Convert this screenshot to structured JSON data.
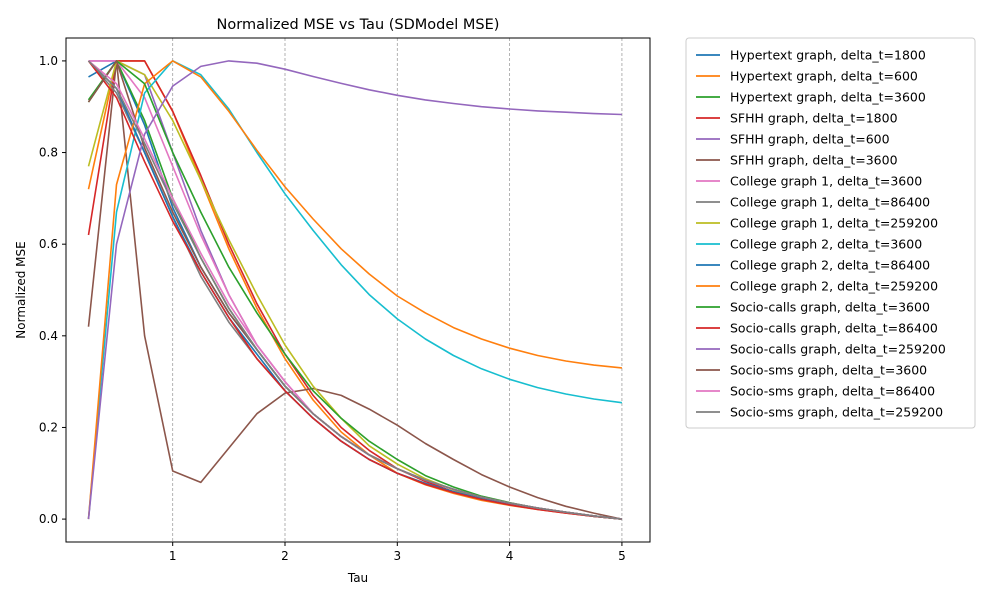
{
  "chart_data": {
    "type": "line",
    "title": "Normalized MSE vs Tau (SDModel MSE)",
    "xlabel": "Tau",
    "ylabel": "Normalized MSE",
    "xlim": [
      0.05,
      5.25
    ],
    "ylim": [
      -0.05,
      1.05
    ],
    "xticks": [
      1,
      2,
      3,
      4,
      5
    ],
    "yticks": [
      0.0,
      0.2,
      0.4,
      0.6,
      0.8,
      1.0
    ],
    "ytick_labels": [
      "0.0",
      "0.2",
      "0.4",
      "0.6",
      "0.8",
      "1.0"
    ],
    "grid": "vertical dashed",
    "legend_position": "outside right",
    "x": [
      0.25,
      0.5,
      0.75,
      1.0,
      1.25,
      1.5,
      1.75,
      2.0,
      2.25,
      2.5,
      2.75,
      3.0,
      3.25,
      3.5,
      3.75,
      4.0,
      4.25,
      4.5,
      4.75,
      5.0
    ],
    "series": [
      {
        "name": "Hypertext graph, delta_t=1800",
        "color": "#1f77b4",
        "values": [
          0.965,
          1.0,
          0.86,
          0.68,
          0.55,
          0.45,
          0.37,
          0.29,
          0.23,
          0.18,
          0.14,
          0.11,
          0.085,
          0.065,
          0.048,
          0.035,
          0.024,
          0.015,
          0.007,
          0.0
        ]
      },
      {
        "name": "Hypertext graph, delta_t=600",
        "color": "#ff7f0e",
        "values": [
          0.72,
          1.0,
          1.0,
          0.89,
          0.74,
          0.59,
          0.46,
          0.35,
          0.26,
          0.19,
          0.14,
          0.1,
          0.075,
          0.056,
          0.041,
          0.03,
          0.021,
          0.013,
          0.006,
          0.0
        ]
      },
      {
        "name": "Hypertext graph, delta_t=3600",
        "color": "#2ca02c",
        "values": [
          0.91,
          1.0,
          0.87,
          0.7,
          0.57,
          0.46,
          0.37,
          0.29,
          0.23,
          0.18,
          0.14,
          0.11,
          0.085,
          0.065,
          0.048,
          0.035,
          0.024,
          0.015,
          0.007,
          0.0
        ]
      },
      {
        "name": "SFHH graph, delta_t=1800",
        "color": "#d62728",
        "values": [
          0.62,
          1.0,
          1.0,
          0.89,
          0.75,
          0.6,
          0.47,
          0.36,
          0.27,
          0.2,
          0.15,
          0.11,
          0.082,
          0.06,
          0.044,
          0.032,
          0.022,
          0.014,
          0.006,
          0.0
        ]
      },
      {
        "name": "SFHH graph, delta_t=600",
        "color": "#9467bd",
        "values": [
          1.0,
          1.0,
          0.97,
          0.8,
          0.63,
          0.49,
          0.38,
          0.3,
          0.23,
          0.18,
          0.14,
          0.11,
          0.085,
          0.065,
          0.048,
          0.035,
          0.024,
          0.015,
          0.007,
          0.0
        ]
      },
      {
        "name": "SFHH graph, delta_t=3600",
        "color": "#8c564b",
        "values": [
          0.42,
          1.0,
          0.4,
          0.105,
          0.08,
          0.155,
          0.23,
          0.275,
          0.285,
          0.27,
          0.24,
          0.205,
          0.165,
          0.13,
          0.097,
          0.07,
          0.047,
          0.028,
          0.013,
          0.0
        ]
      },
      {
        "name": "College graph 1, delta_t=3600",
        "color": "#e377c2",
        "values": [
          1.0,
          1.0,
          0.92,
          0.77,
          0.62,
          0.49,
          0.38,
          0.3,
          0.23,
          0.18,
          0.14,
          0.11,
          0.085,
          0.065,
          0.048,
          0.035,
          0.024,
          0.015,
          0.007,
          0.0
        ]
      },
      {
        "name": "College graph 1, delta_t=86400",
        "color": "#7f7f7f",
        "values": [
          1.0,
          0.93,
          0.8,
          0.66,
          0.53,
          0.43,
          0.35,
          0.28,
          0.22,
          0.17,
          0.13,
          0.1,
          0.078,
          0.06,
          0.045,
          0.033,
          0.023,
          0.014,
          0.006,
          0.0
        ]
      },
      {
        "name": "College graph 1, delta_t=259200",
        "color": "#bcbd22",
        "values": [
          0.77,
          1.0,
          0.97,
          0.87,
          0.74,
          0.61,
          0.49,
          0.38,
          0.29,
          0.22,
          0.16,
          0.12,
          0.088,
          0.064,
          0.046,
          0.033,
          0.022,
          0.014,
          0.006,
          0.0
        ]
      },
      {
        "name": "College graph 2, delta_t=3600",
        "color": "#17becf",
        "values": [
          0.0,
          0.67,
          0.93,
          1.0,
          0.97,
          0.895,
          0.8,
          0.71,
          0.63,
          0.555,
          0.49,
          0.437,
          0.393,
          0.357,
          0.328,
          0.305,
          0.287,
          0.273,
          0.262,
          0.254
        ]
      },
      {
        "name": "College graph 2, delta_t=86400",
        "color": "#1f77b4",
        "values": [
          1.0,
          0.94,
          0.8,
          0.66,
          0.54,
          0.44,
          0.36,
          0.28,
          0.22,
          0.17,
          0.13,
          0.1,
          0.078,
          0.06,
          0.045,
          0.033,
          0.023,
          0.014,
          0.006,
          0.0
        ]
      },
      {
        "name": "College graph 2, delta_t=259200",
        "color": "#ff7f0e",
        "values": [
          0.0,
          0.73,
          0.95,
          1.0,
          0.965,
          0.89,
          0.805,
          0.725,
          0.655,
          0.59,
          0.535,
          0.487,
          0.45,
          0.418,
          0.393,
          0.373,
          0.357,
          0.345,
          0.336,
          0.33
        ]
      },
      {
        "name": "Socio-calls graph, delta_t=3600",
        "color": "#2ca02c",
        "values": [
          0.915,
          1.0,
          0.95,
          0.8,
          0.67,
          0.55,
          0.45,
          0.36,
          0.28,
          0.22,
          0.17,
          0.13,
          0.095,
          0.07,
          0.05,
          0.036,
          0.024,
          0.015,
          0.007,
          0.0
        ]
      },
      {
        "name": "Socio-calls graph, delta_t=86400",
        "color": "#d62728",
        "values": [
          1.0,
          0.92,
          0.78,
          0.65,
          0.54,
          0.44,
          0.35,
          0.28,
          0.22,
          0.17,
          0.13,
          0.1,
          0.076,
          0.058,
          0.043,
          0.031,
          0.021,
          0.013,
          0.006,
          0.0
        ]
      },
      {
        "name": "Socio-calls graph, delta_t=259200",
        "color": "#9467bd",
        "values": [
          0.0,
          0.6,
          0.84,
          0.945,
          0.988,
          1.0,
          0.995,
          0.982,
          0.966,
          0.951,
          0.937,
          0.925,
          0.915,
          0.907,
          0.9,
          0.895,
          0.891,
          0.888,
          0.885,
          0.883
        ]
      },
      {
        "name": "Socio-sms graph, delta_t=3600",
        "color": "#8c564b",
        "values": [
          0.91,
          1.0,
          0.81,
          0.67,
          0.55,
          0.45,
          0.37,
          0.29,
          0.23,
          0.18,
          0.14,
          0.11,
          0.085,
          0.065,
          0.048,
          0.035,
          0.024,
          0.015,
          0.007,
          0.0
        ]
      },
      {
        "name": "Socio-sms graph, delta_t=86400",
        "color": "#e377c2",
        "values": [
          1.0,
          0.95,
          0.83,
          0.7,
          0.58,
          0.47,
          0.38,
          0.3,
          0.23,
          0.18,
          0.14,
          0.11,
          0.085,
          0.065,
          0.048,
          0.035,
          0.024,
          0.015,
          0.007,
          0.0
        ]
      },
      {
        "name": "Socio-sms graph, delta_t=259200",
        "color": "#7f7f7f",
        "values": [
          1.0,
          0.94,
          0.82,
          0.69,
          0.57,
          0.46,
          0.37,
          0.29,
          0.23,
          0.18,
          0.14,
          0.11,
          0.085,
          0.065,
          0.048,
          0.035,
          0.024,
          0.015,
          0.007,
          0.0
        ]
      }
    ]
  }
}
